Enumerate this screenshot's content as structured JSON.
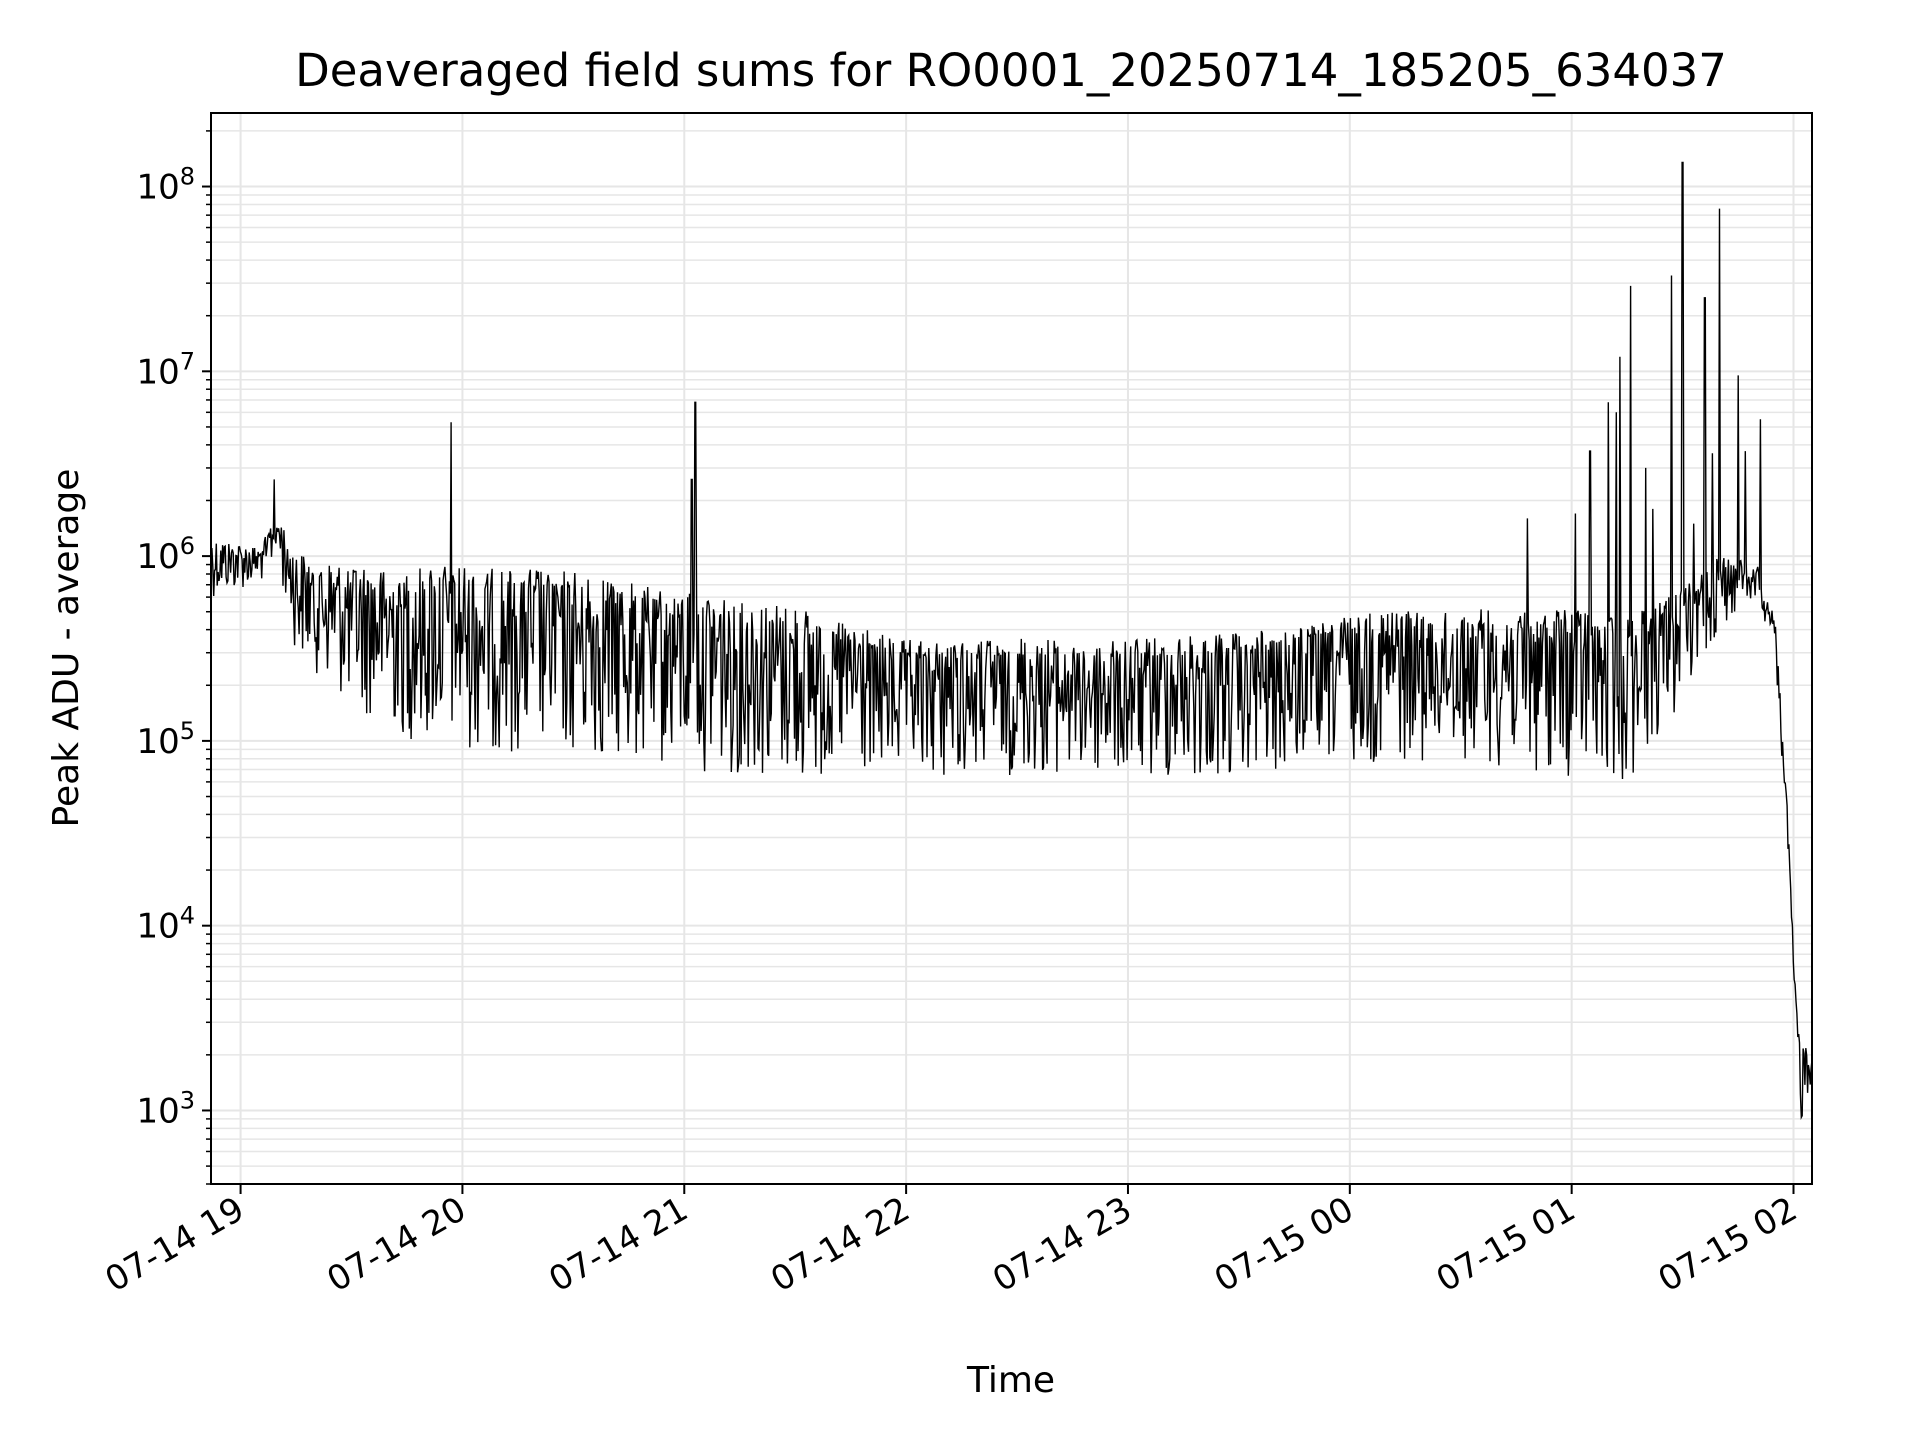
{
  "chart_data": {
    "type": "line",
    "title": "Deaveraged field sums for RO0001_20250714_185205_634037",
    "xlabel": "Time",
    "ylabel": "Peak ADU - average",
    "yscale": "log",
    "xlim": [
      "2025-07-14 18:52",
      "2025-07-15 02:05"
    ],
    "ylim": [
      400,
      250000000
    ],
    "grid": true,
    "legend": "none",
    "xticks": [
      {
        "value": "2025-07-14 19:00",
        "label": "07-14 19"
      },
      {
        "value": "2025-07-14 20:00",
        "label": "07-14 20"
      },
      {
        "value": "2025-07-14 21:00",
        "label": "07-14 21"
      },
      {
        "value": "2025-07-14 22:00",
        "label": "07-14 22"
      },
      {
        "value": "2025-07-14 23:00",
        "label": "07-14 23"
      },
      {
        "value": "2025-07-15 00:00",
        "label": "07-15 00"
      },
      {
        "value": "2025-07-15 01:00",
        "label": "07-15 01"
      },
      {
        "value": "2025-07-15 02:00",
        "label": "07-15 02"
      }
    ],
    "yticks": [
      {
        "value": 1000,
        "base": "10",
        "exp": "3"
      },
      {
        "value": 10000,
        "base": "10",
        "exp": "4"
      },
      {
        "value": 100000,
        "base": "10",
        "exp": "5"
      },
      {
        "value": 1000000,
        "base": "10",
        "exp": "6"
      },
      {
        "value": 10000000,
        "base": "10",
        "exp": "7"
      },
      {
        "value": 100000000,
        "base": "10",
        "exp": "8"
      }
    ],
    "line_color": "#000000",
    "grid_color": "#e6e6e6",
    "baseline_envelope": [
      {
        "x": "2025-07-14 18:52",
        "low": 600000,
        "high": 1400000
      },
      {
        "x": "2025-07-14 19:05",
        "low": 700000,
        "high": 1200000
      },
      {
        "x": "2025-07-14 19:10",
        "low": 900000,
        "high": 2000000
      },
      {
        "x": "2025-07-14 19:15",
        "low": 300000,
        "high": 1300000
      },
      {
        "x": "2025-07-14 19:30",
        "low": 150000,
        "high": 1200000
      },
      {
        "x": "2025-07-14 19:45",
        "low": 100000,
        "high": 1300000
      },
      {
        "x": "2025-07-14 20:00",
        "low": 90000,
        "high": 1400000
      },
      {
        "x": "2025-07-14 20:30",
        "low": 80000,
        "high": 1300000
      },
      {
        "x": "2025-07-14 21:00",
        "low": 70000,
        "high": 1000000
      },
      {
        "x": "2025-07-14 21:30",
        "low": 60000,
        "high": 800000
      },
      {
        "x": "2025-07-14 22:00",
        "low": 60000,
        "high": 500000
      },
      {
        "x": "2025-07-14 22:30",
        "low": 65000,
        "high": 500000
      },
      {
        "x": "2025-07-14 23:00",
        "low": 60000,
        "high": 500000
      },
      {
        "x": "2025-07-14 23:30",
        "low": 60000,
        "high": 550000
      },
      {
        "x": "2025-07-15 00:00",
        "low": 75000,
        "high": 700000
      },
      {
        "x": "2025-07-15 00:30",
        "low": 80000,
        "high": 750000
      },
      {
        "x": "2025-07-15 01:00",
        "low": 60000,
        "high": 800000
      },
      {
        "x": "2025-07-15 01:15",
        "low": 60000,
        "high": 700000
      },
      {
        "x": "2025-07-15 01:30",
        "low": 150000,
        "high": 900000
      },
      {
        "x": "2025-07-15 01:40",
        "low": 400000,
        "high": 1200000
      },
      {
        "x": "2025-07-15 01:50",
        "low": 600000,
        "high": 1000000
      },
      {
        "x": "2025-07-15 01:55",
        "low": 300000,
        "high": 500000
      },
      {
        "x": "2025-07-15 01:57",
        "low": 60000,
        "high": 150000
      },
      {
        "x": "2025-07-15 01:59",
        "low": 8000,
        "high": 30000
      },
      {
        "x": "2025-07-15 02:01",
        "low": 1500,
        "high": 4000
      },
      {
        "x": "2025-07-15 02:02",
        "low": 800,
        "high": 2800
      },
      {
        "x": "2025-07-15 02:05",
        "low": 1500,
        "high": 2500
      }
    ],
    "spikes": [
      {
        "x": "2025-07-14 19:09",
        "y": 2600000
      },
      {
        "x": "2025-07-14 19:57",
        "y": 5300000
      },
      {
        "x": "2025-07-14 21:03",
        "y": 6800000
      },
      {
        "x": "2025-07-14 21:02",
        "y": 2600000
      },
      {
        "x": "2025-07-15 00:48",
        "y": 1600000
      },
      {
        "x": "2025-07-15 01:01",
        "y": 1700000
      },
      {
        "x": "2025-07-15 01:05",
        "y": 3700000
      },
      {
        "x": "2025-07-15 01:10",
        "y": 6800000
      },
      {
        "x": "2025-07-15 01:12",
        "y": 6000000
      },
      {
        "x": "2025-07-15 01:13",
        "y": 12000000
      },
      {
        "x": "2025-07-15 01:16",
        "y": 29000000
      },
      {
        "x": "2025-07-15 01:20",
        "y": 3000000
      },
      {
        "x": "2025-07-15 01:22",
        "y": 1800000
      },
      {
        "x": "2025-07-15 01:27",
        "y": 33000000
      },
      {
        "x": "2025-07-15 01:30",
        "y": 135000000
      },
      {
        "x": "2025-07-15 01:33",
        "y": 1500000
      },
      {
        "x": "2025-07-15 01:36",
        "y": 25000000
      },
      {
        "x": "2025-07-15 01:38",
        "y": 3600000
      },
      {
        "x": "2025-07-15 01:40",
        "y": 76000000
      },
      {
        "x": "2025-07-15 01:45",
        "y": 9500000
      },
      {
        "x": "2025-07-15 01:47",
        "y": 3700000
      },
      {
        "x": "2025-07-15 01:51",
        "y": 5500000
      }
    ]
  }
}
